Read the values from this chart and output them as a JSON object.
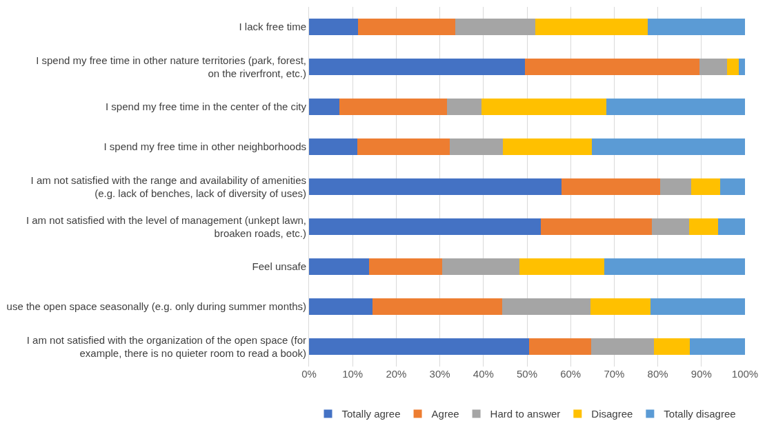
{
  "chart_data": {
    "type": "bar",
    "orientation": "horizontal",
    "stacked": true,
    "categories": [
      "I lack free time",
      "I spend my free time in other nature territories (park, forest, on the riverfront, etc.)",
      "I spend my free time in the center of the city",
      "I spend my free time in other neighborhoods",
      "I am not satisfied with the range and availability of amenities (e.g. lack of benches, lack of diversity of uses)",
      "I am not satisfied with the level of management (unkept lawn, broaken roads, etc.)",
      "Feel unsafe",
      "use the open space seasonally (e.g. only during summer months)",
      "I am not satisfied with the organization of the open space (for example, there is no quieter room to read a book)"
    ],
    "series": [
      {
        "name": "Totally agree",
        "color": "#4472c4",
        "values": [
          11.2,
          49.5,
          7.0,
          11.0,
          57.9,
          53.2,
          13.7,
          14.5,
          50.5
        ]
      },
      {
        "name": "Agree",
        "color": "#ed7d31",
        "values": [
          22.4,
          40.0,
          24.6,
          21.2,
          22.6,
          25.4,
          16.9,
          29.8,
          14.2
        ]
      },
      {
        "name": "Hard to answer",
        "color": "#a5a5a5",
        "values": [
          18.3,
          6.4,
          8.0,
          12.2,
          7.1,
          8.6,
          17.6,
          20.2,
          14.4
        ]
      },
      {
        "name": "Disagree",
        "color": "#ffc000",
        "values": [
          25.8,
          2.6,
          28.6,
          20.5,
          6.7,
          6.6,
          19.5,
          13.8,
          8.2
        ]
      },
      {
        "name": "Totally disagree",
        "color": "#5b9bd5",
        "values": [
          22.3,
          1.5,
          31.8,
          35.1,
          5.7,
          6.2,
          32.3,
          21.7,
          12.7
        ]
      }
    ],
    "xlim": [
      0,
      100
    ],
    "xticks": [
      {
        "value": 0,
        "label": "0%"
      },
      {
        "value": 10,
        "label": "10%"
      },
      {
        "value": 20,
        "label": "20%"
      },
      {
        "value": 30,
        "label": "30%"
      },
      {
        "value": 40,
        "label": "40%"
      },
      {
        "value": 50,
        "label": "50%"
      },
      {
        "value": 60,
        "label": "60%"
      },
      {
        "value": 70,
        "label": "70%"
      },
      {
        "value": 80,
        "label": "80%"
      },
      {
        "value": 90,
        "label": "90%"
      },
      {
        "value": 100,
        "label": "100%"
      }
    ],
    "grid": "x",
    "legend": "bottom"
  }
}
